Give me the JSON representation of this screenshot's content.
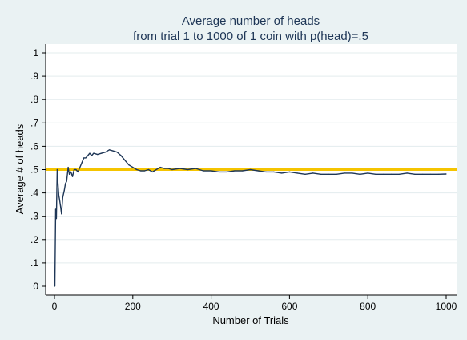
{
  "chart_data": {
    "type": "line",
    "title": "Average number of heads",
    "subtitle": "from trial 1 to 1000 of 1 coin with p(head)=.5",
    "xlabel": "Number of Trials",
    "ylabel": "Average # of heads",
    "xlim": [
      0,
      1000
    ],
    "ylim": [
      0,
      1
    ],
    "xticks": [
      "0",
      "200",
      "400",
      "600",
      "800",
      "1000"
    ],
    "yticks": [
      "0",
      ".1",
      ".2",
      ".3",
      ".4",
      ".5",
      ".6",
      ".7",
      ".8",
      ".9",
      "1"
    ],
    "grid": "horizontal",
    "reference_line": {
      "y": 0.5,
      "color": "#f5c400"
    },
    "series": [
      {
        "color": "#1e3656",
        "x": [
          1,
          3,
          5,
          7,
          9,
          11,
          13,
          15,
          18,
          21,
          25,
          28,
          31,
          35,
          38,
          42,
          46,
          50,
          55,
          60,
          65,
          70,
          75,
          80,
          85,
          90,
          95,
          100,
          110,
          120,
          130,
          140,
          150,
          160,
          170,
          180,
          190,
          200,
          210,
          220,
          230,
          240,
          250,
          260,
          270,
          280,
          290,
          300,
          320,
          340,
          360,
          380,
          400,
          420,
          440,
          460,
          480,
          500,
          520,
          540,
          560,
          580,
          600,
          620,
          640,
          660,
          680,
          700,
          720,
          740,
          760,
          780,
          800,
          820,
          840,
          860,
          880,
          900,
          920,
          940,
          960,
          980,
          1000
        ],
        "values": [
          0.0,
          0.33,
          0.29,
          0.5,
          0.44,
          0.39,
          0.37,
          0.35,
          0.31,
          0.38,
          0.41,
          0.44,
          0.45,
          0.51,
          0.48,
          0.49,
          0.47,
          0.5,
          0.5,
          0.49,
          0.51,
          0.53,
          0.55,
          0.55,
          0.56,
          0.57,
          0.56,
          0.57,
          0.565,
          0.57,
          0.575,
          0.585,
          0.58,
          0.575,
          0.56,
          0.54,
          0.52,
          0.51,
          0.5,
          0.495,
          0.495,
          0.5,
          0.49,
          0.5,
          0.51,
          0.505,
          0.505,
          0.5,
          0.505,
          0.5,
          0.505,
          0.495,
          0.495,
          0.49,
          0.49,
          0.495,
          0.495,
          0.5,
          0.495,
          0.49,
          0.49,
          0.485,
          0.49,
          0.485,
          0.48,
          0.485,
          0.48,
          0.48,
          0.48,
          0.485,
          0.485,
          0.48,
          0.485,
          0.48,
          0.48,
          0.48,
          0.48,
          0.485,
          0.48,
          0.48,
          0.48,
          0.48,
          0.481
        ]
      }
    ]
  }
}
